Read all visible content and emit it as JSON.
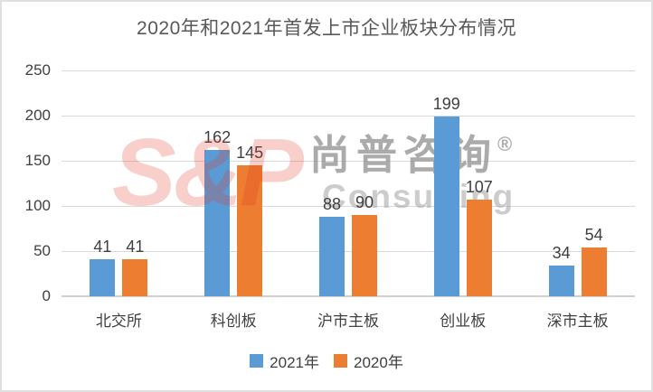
{
  "chart_data": {
    "type": "bar",
    "title": "2020年和2021年首发上市企业板块分布情况",
    "categories": [
      "北交所",
      "科创板",
      "沪市主板",
      "创业板",
      "深市主板"
    ],
    "series": [
      {
        "name": "2021年",
        "color": "#5B9BD5",
        "values": [
          41,
          162,
          88,
          199,
          34
        ]
      },
      {
        "name": "2020年",
        "color": "#ED7D31",
        "values": [
          41,
          145,
          90,
          107,
          54
        ]
      }
    ],
    "xlabel": "",
    "ylabel": "",
    "ylim": [
      0,
      250
    ],
    "yticks": [
      0,
      50,
      100,
      150,
      200,
      250
    ],
    "grid": true,
    "legend_position": "bottom",
    "data_labels": true
  },
  "watermark": {
    "logo_text": "S&P",
    "company_cn": "尚普咨询",
    "registered_mark": "®",
    "company_en": "Consulting",
    "accent_color": "#E23823"
  }
}
